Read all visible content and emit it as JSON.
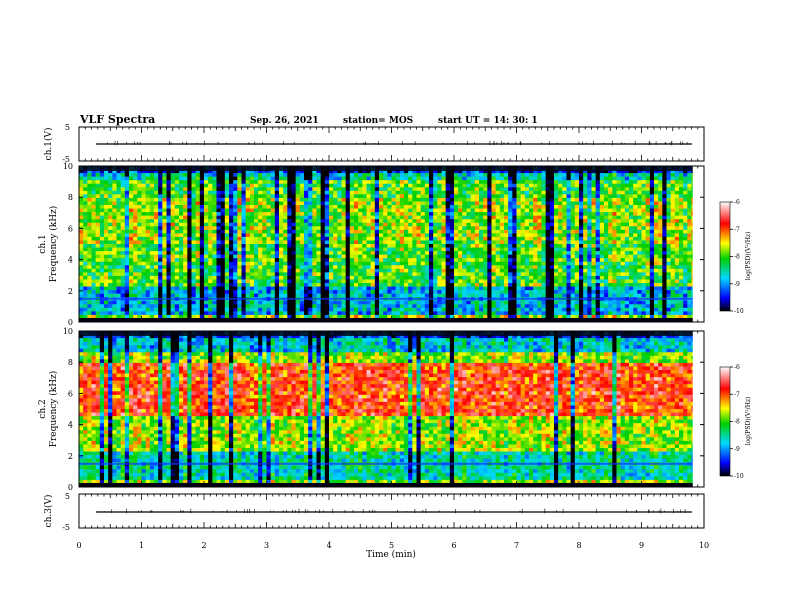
{
  "header": {
    "title": "VLF Spectra",
    "date": "Sep. 26, 2021",
    "station": "station= MOS",
    "start": "start  UT =   14: 30: 1"
  },
  "chart_data": [
    {
      "type": "line",
      "panel": "ch1",
      "ylabel": "ch.1(V)",
      "ylim": [
        -5,
        5
      ],
      "yticks": [
        "5",
        "-5"
      ],
      "trace_level": 0
    },
    {
      "type": "heatmap",
      "panel": "spec1",
      "ylabel_top": "ch.1",
      "ylabel": "Frequency (kHz)",
      "ylim": [
        0,
        10
      ],
      "yticks": [
        "0",
        "2",
        "4",
        "6",
        "8",
        "10"
      ],
      "xlim": [
        0,
        10
      ],
      "colorbar": {
        "label": "log(PSD)(V²/Hz)",
        "range": [
          -10,
          -6
        ],
        "ticks": [
          "-6",
          "-7",
          "-8",
          "-9",
          "-10"
        ]
      }
    },
    {
      "type": "heatmap",
      "panel": "spec2",
      "ylabel_top": "ch.2",
      "ylabel": "Frequency (kHz)",
      "ylim": [
        0,
        10
      ],
      "yticks": [
        "0",
        "2",
        "4",
        "6",
        "8",
        "10"
      ],
      "xlim": [
        0,
        10
      ],
      "colorbar": {
        "label": "log(PSD)(V²/Hz)",
        "range": [
          -10,
          -6
        ],
        "ticks": [
          "-6",
          "-7",
          "-8",
          "-9",
          "-10"
        ]
      }
    },
    {
      "type": "line",
      "panel": "ch3",
      "ylabel": "ch.3(V)",
      "ylim": [
        -5,
        5
      ],
      "yticks": [
        "5",
        "-5"
      ],
      "trace_level": 0
    }
  ],
  "xaxis": {
    "label": "Time (min)",
    "range": [
      0,
      10
    ],
    "ticks": [
      "0",
      "1",
      "2",
      "3",
      "4",
      "5",
      "6",
      "7",
      "8",
      "9",
      "10"
    ]
  }
}
